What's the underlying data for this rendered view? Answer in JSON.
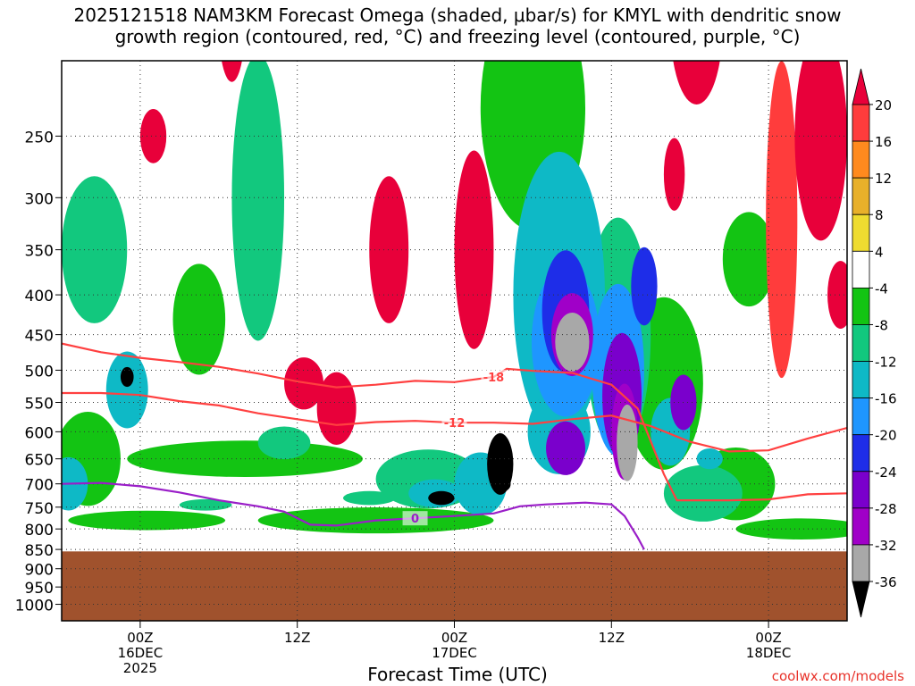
{
  "title": {
    "line1": "2025121518 NAM3KM Forecast Omega (shaded, μbar/s) for KMYL with dendritic snow",
    "line2": "growth region (contoured, red, °C) and freezing level (contoured, purple, °C)"
  },
  "credit": "coolwx.com/models",
  "chart_data": {
    "type": "heatmap",
    "title": "2025121518 NAM3KM Forecast Omega (shaded, μbar/s) for KMYL with dendritic snow growth region (contoured, red, °C) and freezing level (contoured, purple, °C)",
    "xlabel": "Forecast Time (UTC)",
    "ylabel": "",
    "x_ticks": [
      {
        "hour": 0,
        "lines": [
          "00Z",
          "16DEC",
          "2025"
        ]
      },
      {
        "hour": 12,
        "lines": [
          "12Z"
        ]
      },
      {
        "hour": 24,
        "lines": [
          "00Z",
          "17DEC"
        ]
      },
      {
        "hour": 36,
        "lines": [
          "12Z"
        ]
      },
      {
        "hour": 48,
        "lines": [
          "00Z",
          "18DEC"
        ]
      }
    ],
    "xlim_hours": [
      -6,
      54
    ],
    "y_ticks": [
      250,
      300,
      350,
      400,
      450,
      500,
      550,
      600,
      650,
      700,
      750,
      800,
      850,
      900,
      950,
      1000
    ],
    "ylim": [
      1050,
      200
    ],
    "y_scale": "log",
    "grid": true,
    "colorbar": {
      "levels": [
        20,
        16,
        12,
        8,
        4,
        -4,
        -8,
        -12,
        -16,
        -20,
        -24,
        -28,
        -32,
        -36
      ],
      "colors": [
        "#e8003a",
        "#ff3c3c",
        "#ff8a1e",
        "#e8b02a",
        "#eedc30",
        "#ffffff",
        "#13c413",
        "#12c87e",
        "#0eb9c6",
        "#1e96ff",
        "#1e2de8",
        "#7a00cc",
        "#a000c8",
        "#a8a8a8",
        "#000000"
      ]
    },
    "ground_color": "#a0522d",
    "ground_level_hpa": 855,
    "contours": [
      {
        "label": "-12",
        "color": "#ff4040",
        "level": -12,
        "points": [
          [
            -6,
            535
          ],
          [
            -3,
            535
          ],
          [
            0,
            538
          ],
          [
            3,
            548
          ],
          [
            6,
            555
          ],
          [
            9,
            568
          ],
          [
            12,
            578
          ],
          [
            15,
            588
          ],
          [
            18,
            583
          ],
          [
            21,
            581
          ],
          [
            24,
            584
          ],
          [
            27,
            584
          ],
          [
            30,
            586
          ],
          [
            33,
            578
          ],
          [
            36,
            572
          ],
          [
            39,
            590
          ],
          [
            42,
            618
          ],
          [
            45,
            636
          ],
          [
            48,
            634
          ],
          [
            51,
            612
          ],
          [
            54,
            593
          ]
        ]
      },
      {
        "label": "-18",
        "color": "#ff4040",
        "level": -18,
        "points": [
          [
            -6,
            462
          ],
          [
            -3,
            474
          ],
          [
            0,
            482
          ],
          [
            3,
            488
          ],
          [
            6,
            495
          ],
          [
            9,
            505
          ],
          [
            12,
            517
          ],
          [
            15,
            526
          ],
          [
            18,
            522
          ],
          [
            21,
            516
          ],
          [
            24,
            518
          ],
          [
            27,
            510
          ],
          [
            28,
            498
          ],
          [
            30,
            501
          ],
          [
            33,
            504
          ],
          [
            36,
            522
          ],
          [
            38,
            560
          ],
          [
            40,
            680
          ],
          [
            41,
            735
          ],
          [
            45,
            735
          ],
          [
            48,
            733
          ],
          [
            51,
            722
          ],
          [
            54,
            720
          ]
        ]
      },
      {
        "label": "0",
        "color": "#9a1ec8",
        "level": 0,
        "points": [
          [
            -6,
            700
          ],
          [
            -3,
            698
          ],
          [
            0,
            705
          ],
          [
            3,
            718
          ],
          [
            6,
            735
          ],
          [
            9,
            748
          ],
          [
            11,
            760
          ],
          [
            13,
            790
          ],
          [
            15,
            792
          ],
          [
            18,
            780
          ],
          [
            21,
            775
          ],
          [
            24,
            770
          ],
          [
            27,
            764
          ],
          [
            29,
            748
          ],
          [
            31,
            744
          ],
          [
            34,
            740
          ],
          [
            36,
            744
          ],
          [
            37,
            770
          ],
          [
            38,
            820
          ],
          [
            38.5,
            850
          ]
        ]
      }
    ]
  }
}
